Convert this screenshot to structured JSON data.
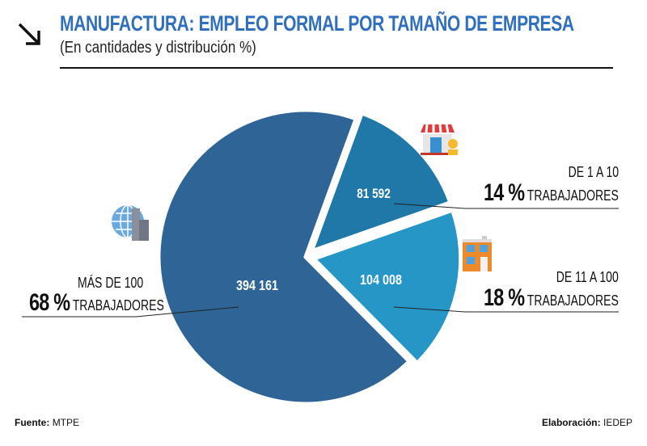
{
  "title": "MANUFACTURA: EMPLEO FORMAL POR TAMAÑO DE EMPRESA",
  "subtitle": "(En cantidades y distribución %)",
  "footer": {
    "source_label": "Fuente:",
    "source_value": "MTPE",
    "credit_label": "Elaboración:",
    "credit_value": "IEDEP"
  },
  "icons": [
    "arrow-down-right-icon",
    "store-icon",
    "apartment-building-icon",
    "globe-city-icon"
  ],
  "colors": {
    "large": "#2e6596",
    "small": "#1f78a8",
    "medium": "#2596c5",
    "title": "#2f6fbd"
  },
  "chart_data": {
    "type": "pie",
    "title": "MANUFACTURA: EMPLEO FORMAL POR TAMAÑO DE EMPRESA",
    "subtitle": "(En cantidades y distribución %)",
    "slices": [
      {
        "name": "DE 1 A 10 TRABAJADORES",
        "range": "DE 1 A 10",
        "unit": "TRABAJADORES",
        "value": 81592,
        "value_label": "81 592",
        "percent": 14,
        "percent_label": "14 %",
        "color": "#1f78a8"
      },
      {
        "name": "DE 11 A 100 TRABAJADORES",
        "range": "DE 11 A 100",
        "unit": "TRABAJADORES",
        "value": 104008,
        "value_label": "104 008",
        "percent": 18,
        "percent_label": "18 %",
        "color": "#2596c5"
      },
      {
        "name": "MÁS DE 100 TRABAJADORES",
        "range": "MÁS DE 100",
        "unit": "TRABAJADORES",
        "value": 394161,
        "value_label": "394 161",
        "percent": 68,
        "percent_label": "68 %",
        "color": "#2e6596"
      }
    ]
  }
}
